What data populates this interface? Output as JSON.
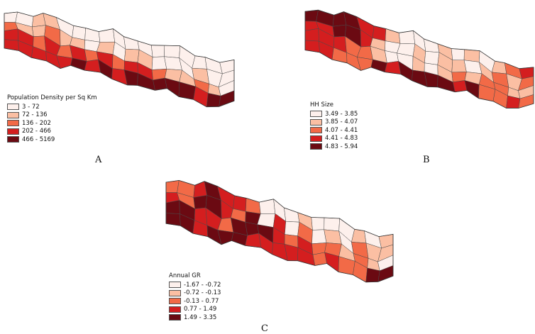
{
  "colors": {
    "class_1": "#fdf0ec",
    "class_2": "#fbbfa3",
    "class_3": "#f26a47",
    "class_4": "#d41e1f",
    "class_5": "#6b0a12",
    "border": "#4a4a4a"
  },
  "panels": [
    {
      "label": "A",
      "legend_title": "Population Density per Sq Km",
      "classes": [
        "3 - 72",
        "72 - 136",
        "136 - 202",
        "202 - 466",
        "466 - 5169"
      ]
    },
    {
      "label": "B",
      "legend_title": "HH Size",
      "classes": [
        "3.49 - 3.85",
        "3.85 - 4.07",
        "4.07 - 4.41",
        "4.41 - 4.83",
        "4.83 - 5.94"
      ]
    },
    {
      "label": "C",
      "legend_title": "Annual GR",
      "classes": [
        "-1.67 - -0.72",
        "-0.72 - -0.13",
        "-0.13 - 0.77",
        "0.77 - 1.49",
        "1.49 - 3.35"
      ]
    }
  ]
}
